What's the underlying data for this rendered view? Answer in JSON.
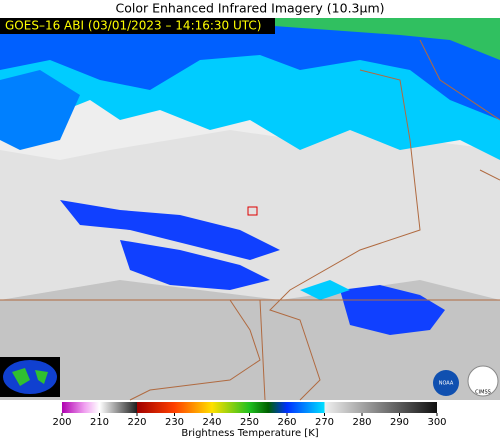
{
  "title": "Color Enhanced Infrared Imagery (10.3μm)",
  "timestamp": "GOES–16 ABI (03/01/2023 – 14:16:30 UTC)",
  "colorbar": {
    "label": "Brightness Temperature [K]",
    "lim": [
      200,
      300
    ],
    "ticks": [
      200,
      210,
      220,
      230,
      240,
      250,
      260,
      270,
      280,
      290,
      300
    ]
  },
  "logos": {
    "agency": "NOAA",
    "institute": "CIMSS"
  }
}
